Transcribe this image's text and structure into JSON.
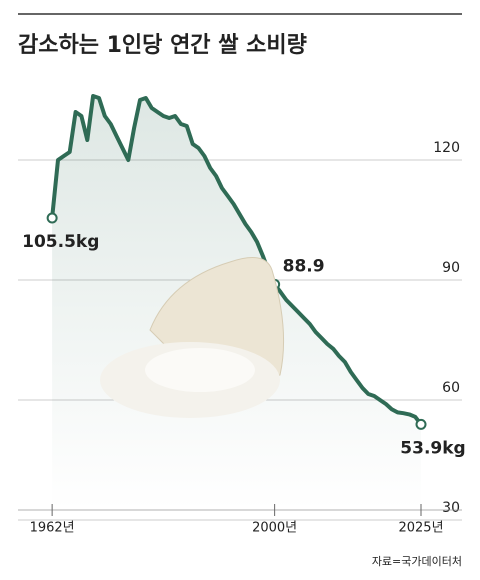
{
  "chart_data": {
    "type": "line",
    "title": "감소하는 1인당 연간 쌀 소비량",
    "source": "자료=국가데이터처",
    "x": [
      1962,
      1963,
      1964,
      1965,
      1966,
      1967,
      1968,
      1969,
      1970,
      1971,
      1972,
      1973,
      1974,
      1975,
      1976,
      1977,
      1978,
      1979,
      1980,
      1981,
      1982,
      1983,
      1984,
      1985,
      1986,
      1987,
      1988,
      1989,
      1990,
      1991,
      1992,
      1993,
      1994,
      1995,
      1996,
      1997,
      1998,
      1999,
      2000,
      2001,
      2002,
      2003,
      2004,
      2005,
      2006,
      2007,
      2008,
      2009,
      2010,
      2011,
      2012,
      2013,
      2014,
      2015,
      2016,
      2017,
      2018,
      2019,
      2020,
      2021,
      2022,
      2023,
      2024,
      2025
    ],
    "values": [
      105.5,
      120,
      121,
      122,
      132,
      131,
      125,
      136,
      135.5,
      131,
      129,
      126,
      123,
      120,
      128,
      135,
      135.5,
      133,
      132,
      131,
      130.5,
      131,
      129,
      128.5,
      124,
      123,
      121,
      118,
      116,
      113,
      111,
      109,
      106.5,
      104,
      102,
      99.5,
      96,
      92,
      88.9,
      87,
      85,
      83.5,
      82,
      80.5,
      79,
      77,
      75.5,
      74,
      72.8,
      71,
      69.5,
      67,
      65,
      63,
      61.5,
      61,
      60,
      59,
      57.7,
      56.9,
      56.7,
      56.4,
      55.8,
      53.9
    ],
    "value_labels": [
      "105.5kg",
      null,
      null,
      null,
      null,
      null,
      null,
      null,
      null,
      null,
      null,
      null,
      null,
      null,
      null,
      null,
      null,
      null,
      null,
      null,
      null,
      null,
      null,
      null,
      null,
      null,
      null,
      null,
      null,
      null,
      null,
      null,
      null,
      null,
      null,
      null,
      null,
      null,
      "88.9",
      null,
      null,
      null,
      null,
      null,
      null,
      null,
      null,
      null,
      null,
      null,
      null,
      null,
      null,
      null,
      null,
      null,
      null,
      null,
      null,
      null,
      null,
      null,
      null,
      "53.9kg"
    ],
    "color": "#2f6b55",
    "xlim": [
      1956,
      2032
    ],
    "xticks": [
      {
        "value": 1962,
        "label": "1962년"
      },
      {
        "value": 2000,
        "label": "2000년"
      },
      {
        "value": 2025,
        "label": "2025년"
      }
    ],
    "ylim": [
      30,
      140
    ],
    "yticks": [
      30,
      60,
      90,
      120
    ],
    "grid": true
  }
}
